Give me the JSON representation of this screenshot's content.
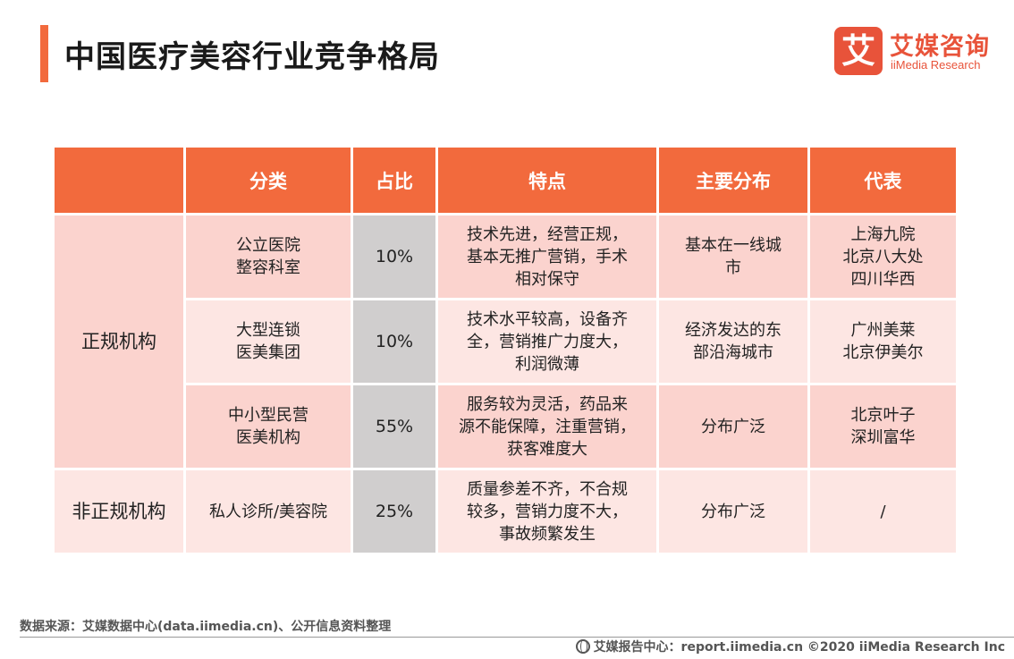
{
  "title": "中国医疗美容行业竞争格局",
  "logo": {
    "mark": "艾",
    "cn": "艾媒咨询",
    "en": "iiMedia Research"
  },
  "table": {
    "headers": [
      "",
      "分类",
      "占比",
      "特点",
      "主要分布",
      "代表"
    ],
    "groups": [
      {
        "name": "正规机构",
        "rows": [
          {
            "category": "公立医院\n整容科室",
            "ratio": "10%",
            "feature": "技术先进，经营正规，\n基本无推广营销，手术\n相对保守",
            "distribution": "基本在一线城\n市",
            "representative": "上海九院\n北京八大处\n四川华西"
          },
          {
            "category": "大型连锁\n医美集团",
            "ratio": "10%",
            "feature": "技术水平较高，设备齐\n全，营销推广力度大，\n利润微薄",
            "distribution": "经济发达的东\n部沿海城市",
            "representative": "广州美莱\n北京伊美尔"
          },
          {
            "category": "中小型民营\n医美机构",
            "ratio": "55%",
            "feature": "服务较为灵活，药品来\n源不能保障，注重营销，\n获客难度大",
            "distribution": "分布广泛",
            "representative": "北京叶子\n深圳富华"
          }
        ]
      },
      {
        "name": "非正规机构",
        "rows": [
          {
            "category": "私人诊所/美容院",
            "ratio": "25%",
            "feature": "质量参差不齐，不合规\n较多，营销力度不大，\n事故频繁发生",
            "distribution": "分布广泛",
            "representative": "/"
          }
        ]
      }
    ]
  },
  "source": "数据来源：艾媒数据中心(data.iimedia.cn)、公开信息资料整理",
  "footer": "艾媒报告中心：report.iimedia.cn  ©2020  iiMedia Research  Inc",
  "colors": {
    "accent": "#f26a3d",
    "row_dark": "#fbd3ce",
    "row_light": "#fde6e3",
    "ratio_bg": "#d0cece"
  }
}
